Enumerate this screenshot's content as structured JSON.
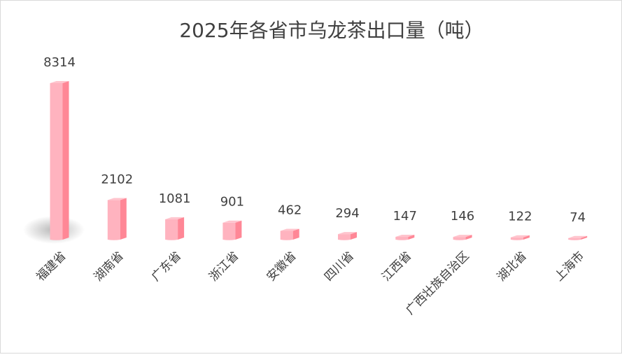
{
  "chart_data": {
    "type": "bar",
    "title": "2025年各省市乌龙茶出口量（吨）",
    "xlabel": "",
    "ylabel": "",
    "categories": [
      "福建省",
      "湖南省",
      "广东省",
      "浙江省",
      "安徽省",
      "四川省",
      "江西省",
      "广西壮族自治区",
      "湖北省",
      "上海市"
    ],
    "values": [
      8314,
      2102,
      1081,
      901,
      462,
      294,
      147,
      146,
      122,
      74
    ],
    "ylim": [
      0,
      8314
    ],
    "grid": false,
    "legend": "none",
    "colors": {
      "bar_front": "#ffb3bf",
      "bar_side": "#ff8796",
      "bar_top": "#ffc4cd",
      "text": "#404040"
    }
  }
}
